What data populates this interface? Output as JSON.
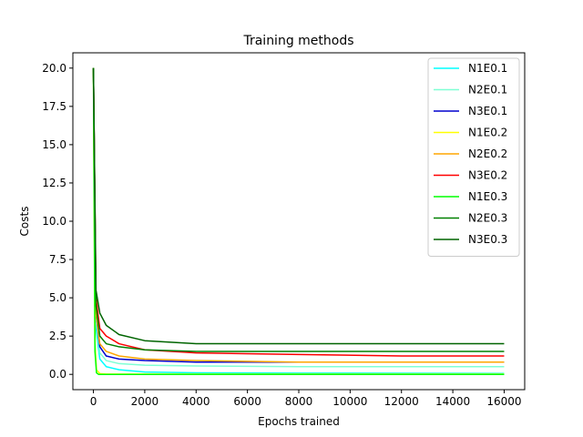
{
  "chart_data": {
    "type": "line",
    "title": "Training methods",
    "xlabel": "Epochs trained",
    "ylabel": "Costs",
    "xlim": [
      -800,
      16800
    ],
    "ylim": [
      -0.999,
      20.999
    ],
    "xticks": [
      0,
      2000,
      4000,
      6000,
      8000,
      10000,
      12000,
      14000,
      16000
    ],
    "xtick_labels": [
      "0",
      "2000",
      "4000",
      "6000",
      "8000",
      "10000",
      "12000",
      "14000",
      "16000"
    ],
    "yticks": [
      0.0,
      2.5,
      5.0,
      7.5,
      10.0,
      12.5,
      15.0,
      17.5,
      20.0
    ],
    "ytick_labels": [
      "0.0",
      "2.5",
      "5.0",
      "7.5",
      "10.0",
      "12.5",
      "15.0",
      "17.5",
      "20.0"
    ],
    "grid": false,
    "legend_position": "top-right",
    "series": [
      {
        "name": "N1E0.1",
        "color": "#00ffff",
        "x": [
          0,
          100,
          250,
          500,
          1000,
          2000,
          4000,
          8000,
          12000,
          16000
        ],
        "y": [
          20.0,
          3.0,
          1.0,
          0.5,
          0.3,
          0.15,
          0.1,
          0.08,
          0.07,
          0.06
        ]
      },
      {
        "name": "N2E0.1",
        "color": "#7fffd4",
        "x": [
          0,
          100,
          250,
          500,
          1000,
          2000,
          4000,
          8000,
          12000,
          16000
        ],
        "y": [
          20.0,
          3.5,
          1.4,
          0.9,
          0.7,
          0.6,
          0.55,
          0.5,
          0.5,
          0.5
        ]
      },
      {
        "name": "N3E0.1",
        "color": "#0000cd",
        "x": [
          0,
          100,
          250,
          500,
          1000,
          2000,
          4000,
          8000,
          12000,
          16000
        ],
        "y": [
          20.0,
          4.0,
          1.8,
          1.2,
          1.0,
          0.9,
          0.8,
          0.8,
          0.8,
          0.8
        ]
      },
      {
        "name": "N1E0.2",
        "color": "#ffff00",
        "x": [
          0,
          60,
          120,
          250,
          500,
          1000,
          4000,
          8000,
          12000,
          16000
        ],
        "y": [
          20.0,
          2.0,
          0.3,
          0.05,
          0.02,
          0.02,
          0.02,
          0.02,
          0.02,
          0.02
        ]
      },
      {
        "name": "N2E0.2",
        "color": "#ffa500",
        "x": [
          0,
          100,
          250,
          500,
          1000,
          2000,
          4000,
          8000,
          12000,
          16000
        ],
        "y": [
          20.0,
          4.0,
          2.0,
          1.5,
          1.2,
          1.0,
          0.9,
          0.8,
          0.8,
          0.8
        ]
      },
      {
        "name": "N3E0.2",
        "color": "#ff0000",
        "x": [
          0,
          100,
          250,
          500,
          1000,
          2000,
          4000,
          8000,
          12000,
          16000
        ],
        "y": [
          20.0,
          5.0,
          3.0,
          2.5,
          2.0,
          1.6,
          1.4,
          1.3,
          1.2,
          1.2
        ]
      },
      {
        "name": "N1E0.3",
        "color": "#00ff00",
        "x": [
          0,
          60,
          120,
          200,
          400,
          1000,
          4000,
          8000,
          12000,
          16000
        ],
        "y": [
          20.0,
          1.5,
          0.1,
          0.0,
          0.0,
          0.0,
          0.0,
          0.0,
          0.0,
          0.0
        ]
      },
      {
        "name": "N2E0.3",
        "color": "#008000",
        "x": [
          0,
          100,
          250,
          500,
          1000,
          2000,
          4000,
          8000,
          12000,
          16000
        ],
        "y": [
          20.0,
          4.5,
          2.5,
          2.0,
          1.8,
          1.6,
          1.5,
          1.5,
          1.5,
          1.5
        ]
      },
      {
        "name": "N3E0.3",
        "color": "#006400",
        "x": [
          0,
          100,
          250,
          500,
          1000,
          2000,
          4000,
          8000,
          12000,
          16000
        ],
        "y": [
          20.0,
          5.5,
          4.0,
          3.2,
          2.6,
          2.2,
          2.0,
          2.0,
          2.0,
          2.0
        ]
      }
    ]
  }
}
